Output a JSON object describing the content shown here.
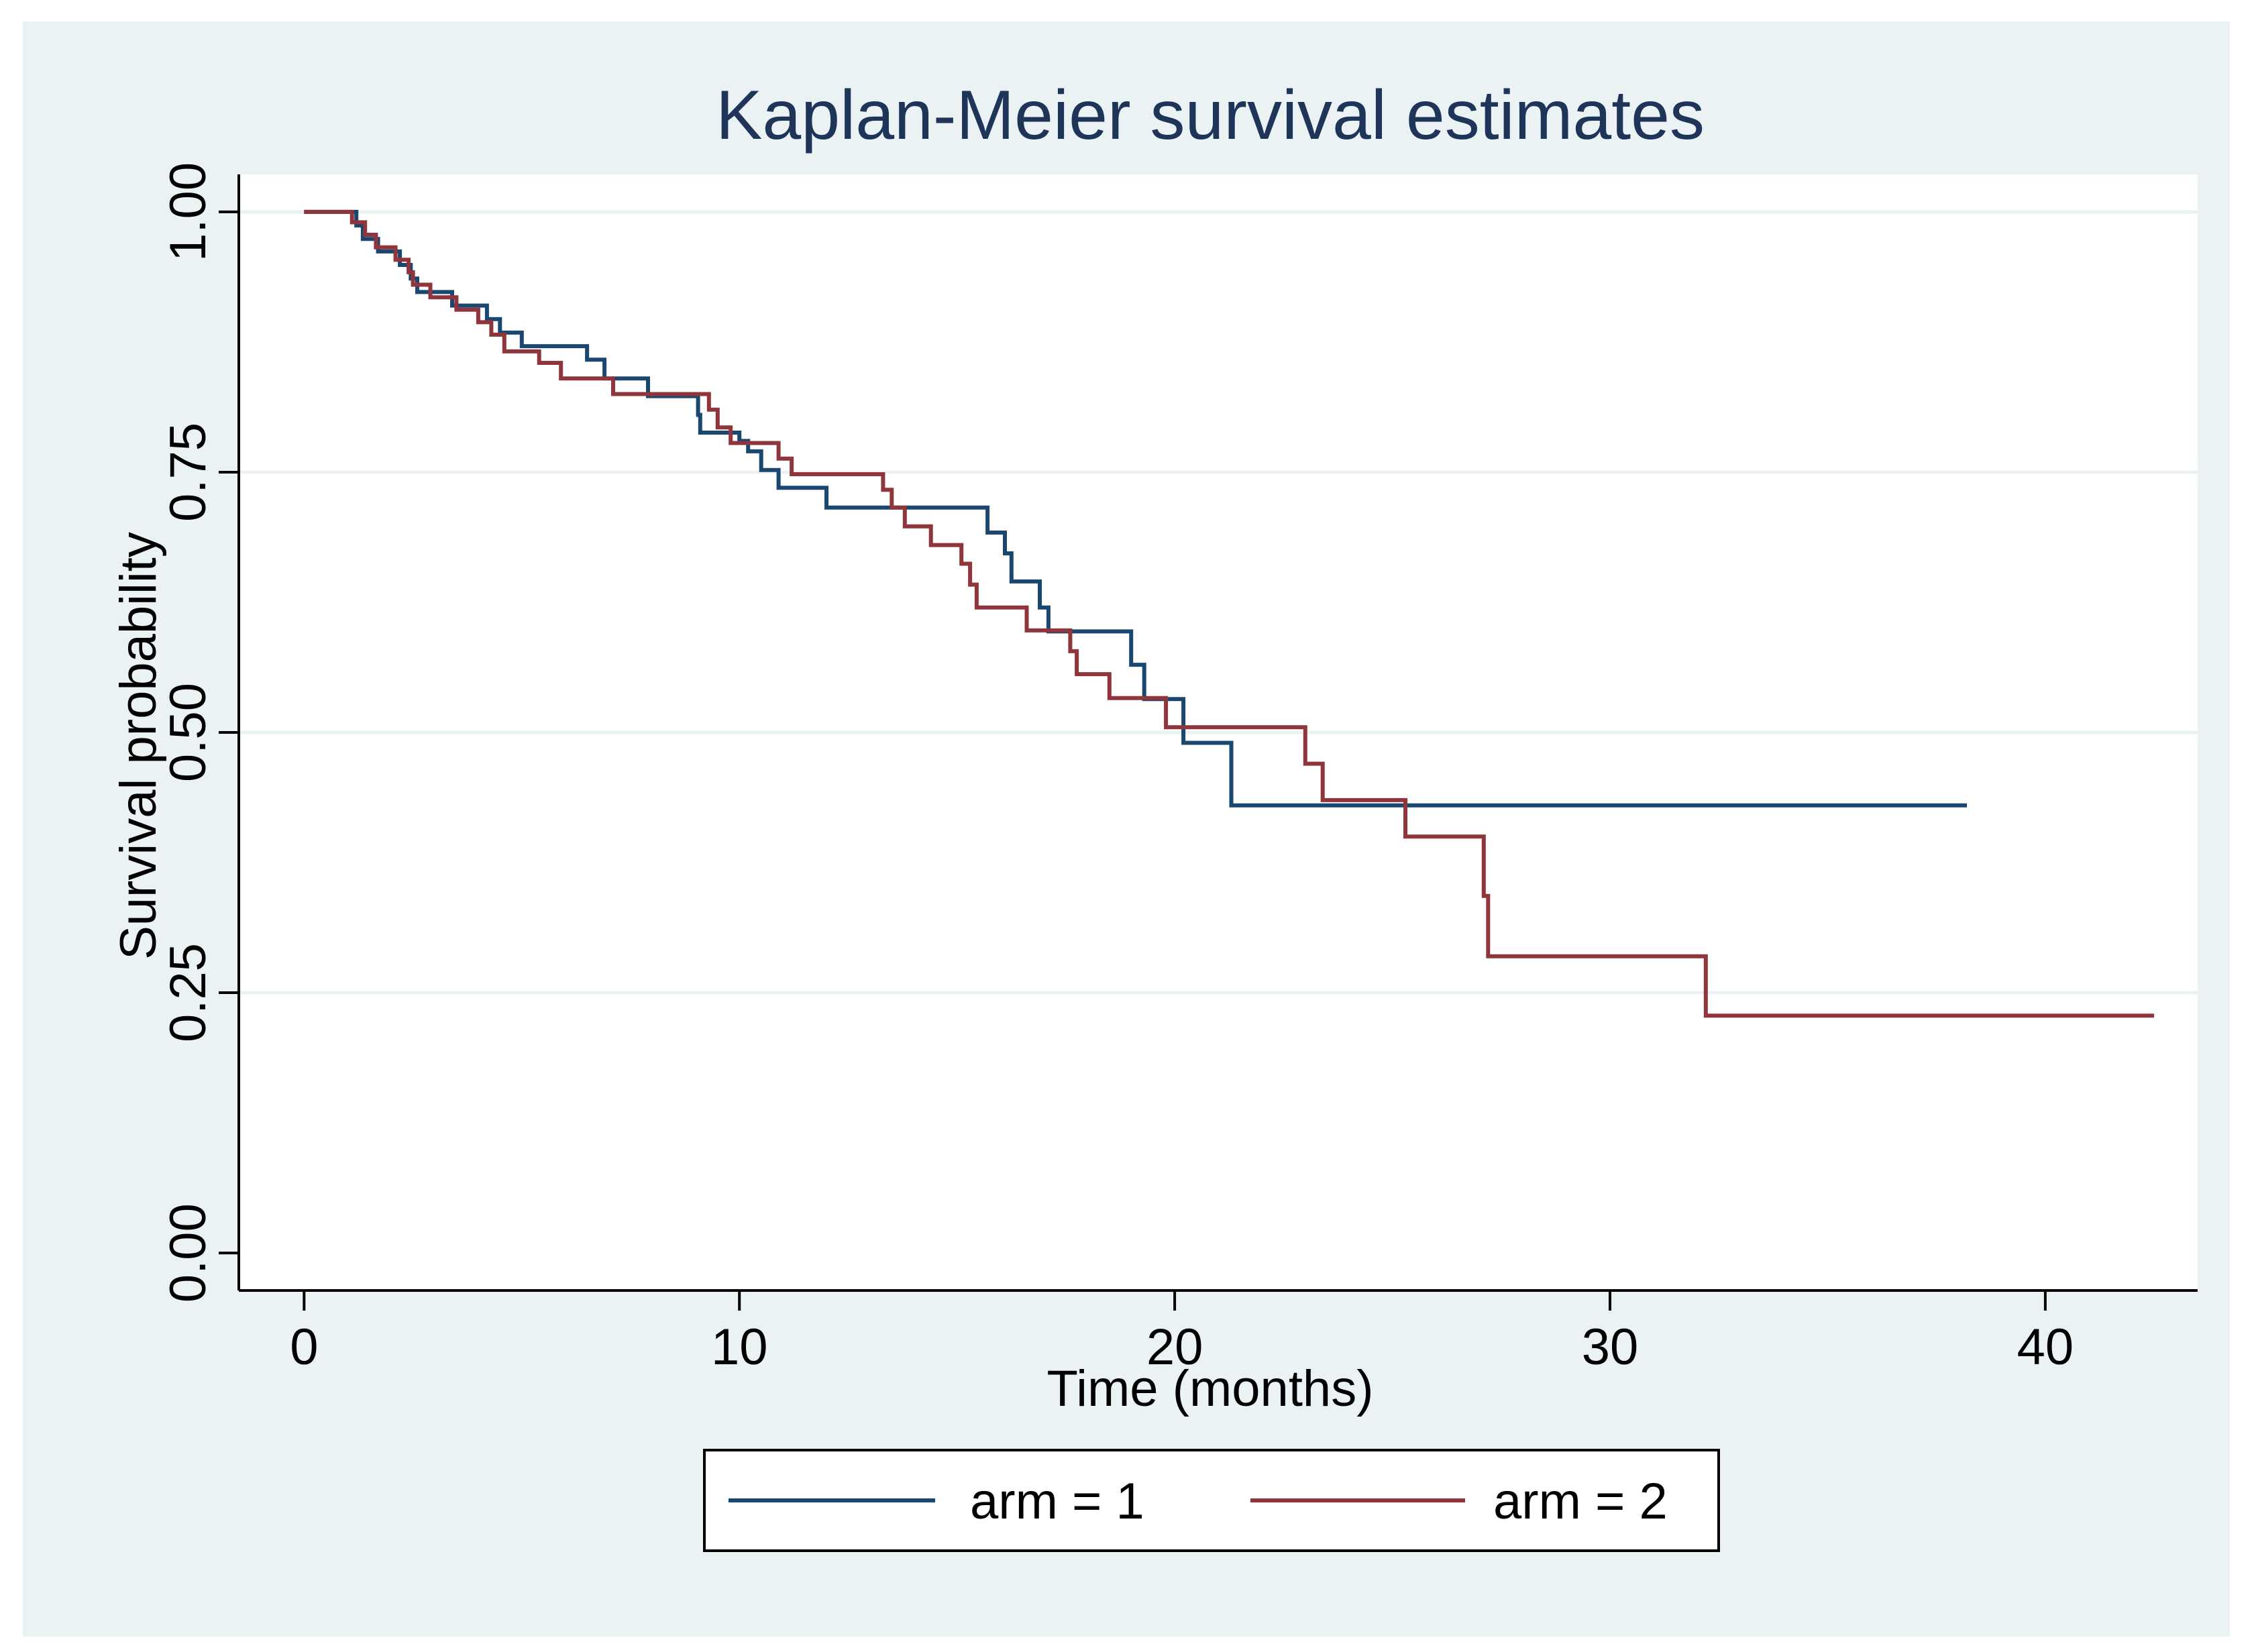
{
  "chart_data": {
    "type": "line",
    "step": "post",
    "title": "Kaplan-Meier survival estimates",
    "xlabel": "Time (months)",
    "ylabel": "Survival probability",
    "xlim": [
      -1.5,
      43.5
    ],
    "ylim": [
      -0.036,
      1.036
    ],
    "xticks": [
      0,
      10,
      20,
      30,
      40
    ],
    "xtick_labels": [
      "0",
      "10",
      "20",
      "30",
      "40"
    ],
    "yticks": [
      0,
      0.25,
      0.5,
      0.75,
      1
    ],
    "ytick_labels": [
      "0.00",
      "0.25",
      "0.50",
      "0.75",
      "1.00"
    ],
    "grid": "horizontal",
    "legend_position": "bottom",
    "colors": {
      "background": "#eaf2f3",
      "plot_background": "#ffffff",
      "gridline": "#eaf2f3",
      "title": "#1e3559"
    },
    "series": [
      {
        "name": "arm = 1",
        "color": "#1a476f",
        "points": [
          [
            0,
            1.0
          ],
          [
            1.2,
            0.987
          ],
          [
            1.35,
            0.974
          ],
          [
            1.7,
            0.962
          ],
          [
            2.2,
            0.949
          ],
          [
            2.45,
            0.936
          ],
          [
            2.6,
            0.923
          ],
          [
            3.4,
            0.91
          ],
          [
            4.2,
            0.897
          ],
          [
            4.5,
            0.884
          ],
          [
            5.0,
            0.871
          ],
          [
            6.5,
            0.858
          ],
          [
            6.9,
            0.84
          ],
          [
            7.9,
            0.823
          ],
          [
            9.05,
            0.805
          ],
          [
            9.1,
            0.788
          ],
          [
            10.0,
            0.78
          ],
          [
            10.2,
            0.77
          ],
          [
            10.5,
            0.752
          ],
          [
            10.9,
            0.735
          ],
          [
            12.0,
            0.716
          ],
          [
            15.7,
            0.692
          ],
          [
            16.1,
            0.672
          ],
          [
            16.25,
            0.645
          ],
          [
            16.9,
            0.62
          ],
          [
            17.1,
            0.597
          ],
          [
            19.0,
            0.565
          ],
          [
            19.3,
            0.532
          ],
          [
            20.2,
            0.49
          ],
          [
            21.3,
            0.43
          ],
          [
            38.2,
            0.43
          ]
        ]
      },
      {
        "name": "arm = 2",
        "color": "#90353b",
        "points": [
          [
            0,
            1.0
          ],
          [
            1.1,
            0.99
          ],
          [
            1.4,
            0.978
          ],
          [
            1.65,
            0.966
          ],
          [
            2.1,
            0.954
          ],
          [
            2.4,
            0.942
          ],
          [
            2.5,
            0.93
          ],
          [
            2.9,
            0.918
          ],
          [
            3.5,
            0.906
          ],
          [
            4.0,
            0.894
          ],
          [
            4.3,
            0.882
          ],
          [
            4.6,
            0.866
          ],
          [
            5.4,
            0.855
          ],
          [
            5.9,
            0.84
          ],
          [
            7.1,
            0.825
          ],
          [
            9.3,
            0.81
          ],
          [
            9.5,
            0.793
          ],
          [
            9.8,
            0.778
          ],
          [
            10.9,
            0.763
          ],
          [
            11.2,
            0.748
          ],
          [
            13.3,
            0.733
          ],
          [
            13.5,
            0.716
          ],
          [
            13.8,
            0.698
          ],
          [
            14.4,
            0.68
          ],
          [
            15.1,
            0.662
          ],
          [
            15.3,
            0.642
          ],
          [
            15.45,
            0.62
          ],
          [
            16.6,
            0.598
          ],
          [
            17.6,
            0.578
          ],
          [
            17.75,
            0.556
          ],
          [
            18.5,
            0.533
          ],
          [
            19.8,
            0.505
          ],
          [
            23.0,
            0.47
          ],
          [
            23.4,
            0.435
          ],
          [
            25.3,
            0.4
          ],
          [
            27.1,
            0.343
          ],
          [
            27.2,
            0.285
          ],
          [
            32.2,
            0.228
          ],
          [
            42.5,
            0.228
          ]
        ]
      }
    ]
  }
}
